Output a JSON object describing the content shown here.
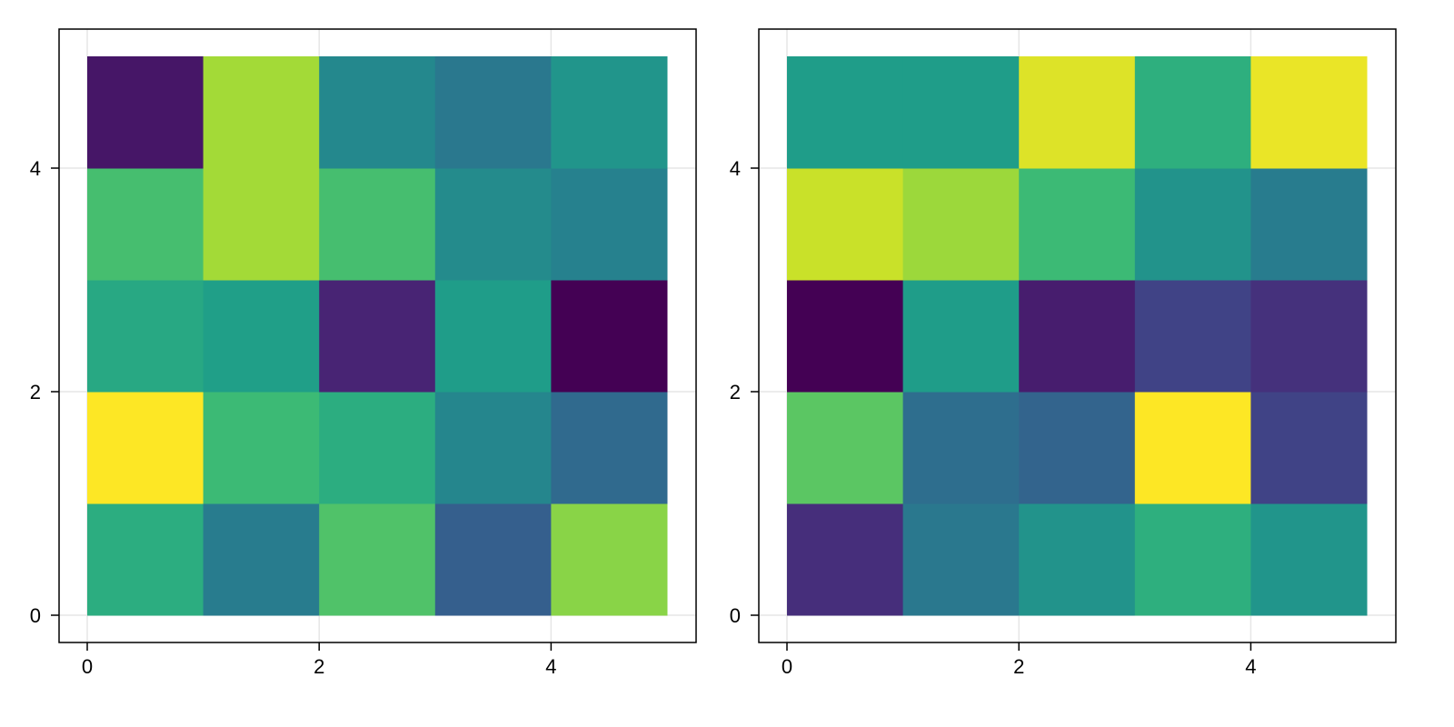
{
  "colors": {
    "background": "#ffffff",
    "frame": "#000000",
    "grid": "#e6e6e6",
    "colormap": "viridis"
  },
  "chart_data": [
    {
      "type": "heatmap",
      "xlim": [
        0,
        5
      ],
      "ylim": [
        0,
        5
      ],
      "x_ticks": [
        0,
        2,
        4
      ],
      "y_ticks": [
        0,
        2,
        4
      ],
      "x_tick_labels": [
        "0",
        "2",
        "4"
      ],
      "y_tick_labels": [
        "0",
        "2",
        "4"
      ],
      "grid": true,
      "title": "",
      "xlabel": "",
      "ylabel": "",
      "value_range": [
        0,
        1
      ],
      "rows_bottom_to_top": [
        [
          0.62,
          0.42,
          0.72,
          0.3,
          0.82
        ],
        [
          1.0,
          0.68,
          0.62,
          0.46,
          0.34
        ],
        [
          0.6,
          0.56,
          0.1,
          0.55,
          0.0
        ],
        [
          0.7,
          0.86,
          0.7,
          0.48,
          0.44
        ],
        [
          0.06,
          0.86,
          0.47,
          0.4,
          0.52
        ]
      ]
    },
    {
      "type": "heatmap",
      "xlim": [
        0,
        5
      ],
      "ylim": [
        0,
        5
      ],
      "x_ticks": [
        0,
        2,
        4
      ],
      "y_ticks": [
        0,
        2,
        4
      ],
      "x_tick_labels": [
        "0",
        "2",
        "4"
      ],
      "y_tick_labels": [
        "0",
        "2",
        "4"
      ],
      "grid": true,
      "title": "",
      "xlabel": "",
      "ylabel": "",
      "value_range": [
        0,
        1
      ],
      "rows_bottom_to_top": [
        [
          0.13,
          0.4,
          0.51,
          0.63,
          0.52
        ],
        [
          0.74,
          0.36,
          0.32,
          1.0,
          0.2
        ],
        [
          0.0,
          0.55,
          0.08,
          0.2,
          0.14
        ],
        [
          0.92,
          0.85,
          0.68,
          0.51,
          0.42
        ],
        [
          0.55,
          0.55,
          0.95,
          0.63,
          0.97
        ]
      ]
    }
  ]
}
